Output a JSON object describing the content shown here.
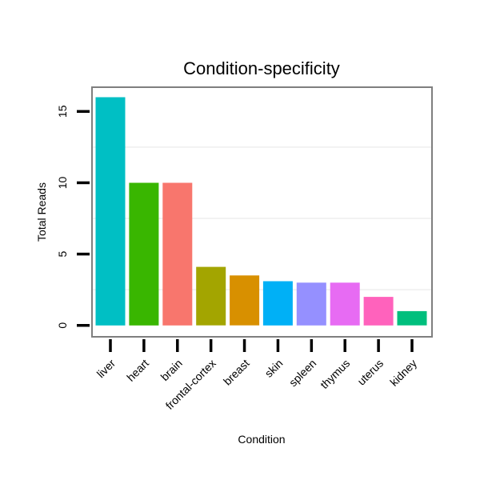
{
  "chart_data": {
    "type": "bar",
    "title": "Condition-specificity",
    "xlabel": "Condition",
    "ylabel": "Total Reads",
    "categories": [
      "liver",
      "heart",
      "brain",
      "frontal-cortex",
      "breast",
      "skin",
      "spleen",
      "thymus",
      "uterus",
      "kidney"
    ],
    "values": [
      16,
      10,
      10,
      4.1,
      3.5,
      3.1,
      3,
      3,
      2,
      1
    ],
    "colors": [
      "#00BFC4",
      "#39B600",
      "#F8766D",
      "#A3A500",
      "#D89000",
      "#00B0F6",
      "#9590FF",
      "#E76BF3",
      "#FF62BC",
      "#00BF7D"
    ],
    "ylim": [
      -0.8,
      16.7
    ],
    "yticks": [
      0,
      5,
      10,
      15
    ],
    "ytick_labels": [
      "0",
      "5",
      "10",
      "15"
    ],
    "grid": true,
    "legend": "none"
  }
}
